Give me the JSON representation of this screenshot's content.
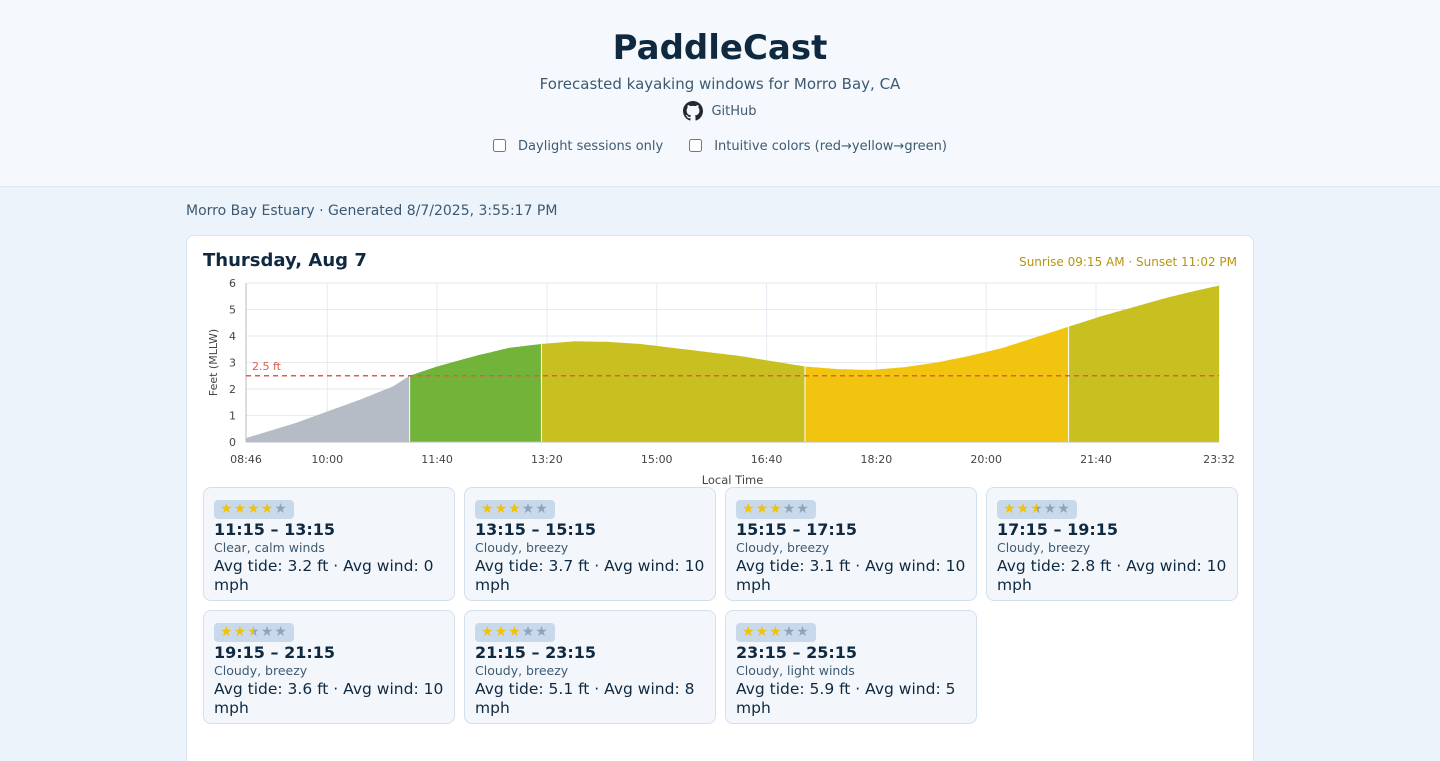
{
  "app": {
    "title": "PaddleCast",
    "subtitle": "Forecasted kayaking windows for Morro Bay, CA",
    "github_label": "GitHub",
    "toggles": [
      {
        "label": "Daylight sessions only",
        "checked": false
      },
      {
        "label": "Intuitive colors (red→yellow→green)",
        "checked": false
      }
    ]
  },
  "meta": "Morro Bay Estuary · Generated 8/7/2025, 3:55:17 PM",
  "day": {
    "title": "Thursday, Aug 7",
    "sun": "Sunrise 09:15 AM · Sunset 11:02 PM"
  },
  "chart_data": {
    "type": "area",
    "xlabel": "Local Time",
    "ylabel": "Feet (MLLW)",
    "ylim": [
      0,
      6
    ],
    "yticks": [
      "0",
      "1",
      "2",
      "3",
      "4",
      "5",
      "6"
    ],
    "xticks": [
      "08:46",
      "10:00",
      "11:40",
      "13:20",
      "15:00",
      "16:40",
      "18:20",
      "20:00",
      "21:40",
      "23:32"
    ],
    "x_minutes_range": [
      "08:46",
      "23:32"
    ],
    "threshold": {
      "value": 2.5,
      "label": "2.5 ft",
      "color": "#e25b4a"
    },
    "grid": true,
    "tide_curve": [
      {
        "t": "08:46",
        "ft": 0.15
      },
      {
        "t": "09:30",
        "ft": 0.7
      },
      {
        "t": "10:00",
        "ft": 1.15
      },
      {
        "t": "10:30",
        "ft": 1.6
      },
      {
        "t": "11:00",
        "ft": 2.1
      },
      {
        "t": "11:15",
        "ft": 2.5
      },
      {
        "t": "11:40",
        "ft": 2.85
      },
      {
        "t": "12:15",
        "ft": 3.25
      },
      {
        "t": "12:45",
        "ft": 3.55
      },
      {
        "t": "13:15",
        "ft": 3.7
      },
      {
        "t": "13:45",
        "ft": 3.8
      },
      {
        "t": "14:15",
        "ft": 3.78
      },
      {
        "t": "14:45",
        "ft": 3.7
      },
      {
        "t": "15:15",
        "ft": 3.55
      },
      {
        "t": "15:45",
        "ft": 3.4
      },
      {
        "t": "16:15",
        "ft": 3.25
      },
      {
        "t": "16:45",
        "ft": 3.05
      },
      {
        "t": "17:15",
        "ft": 2.85
      },
      {
        "t": "17:45",
        "ft": 2.75
      },
      {
        "t": "18:15",
        "ft": 2.72
      },
      {
        "t": "18:45",
        "ft": 2.82
      },
      {
        "t": "19:15",
        "ft": 3.0
      },
      {
        "t": "19:45",
        "ft": 3.25
      },
      {
        "t": "20:15",
        "ft": 3.55
      },
      {
        "t": "20:45",
        "ft": 3.95
      },
      {
        "t": "21:15",
        "ft": 4.35
      },
      {
        "t": "21:45",
        "ft": 4.75
      },
      {
        "t": "22:15",
        "ft": 5.1
      },
      {
        "t": "22:45",
        "ft": 5.45
      },
      {
        "t": "23:15",
        "ft": 5.75
      },
      {
        "t": "23:32",
        "ft": 5.9
      }
    ],
    "bands": [
      {
        "start": "08:46",
        "end": "11:15",
        "color": "#b5bcc6"
      },
      {
        "start": "11:15",
        "end": "13:15",
        "color": "#72b33a"
      },
      {
        "start": "13:15",
        "end": "17:15",
        "color": "#c8c020"
      },
      {
        "start": "17:15",
        "end": "21:15",
        "color": "#f0c40f"
      },
      {
        "start": "21:15",
        "end": "23:32",
        "color": "#c8c020"
      }
    ]
  },
  "sessions": [
    {
      "time": "11:15 – 13:15",
      "cond": "Clear, calm winds",
      "avg": "Avg tide: 3.2 ft · Avg wind: 0 mph",
      "rating": 4
    },
    {
      "time": "13:15 – 15:15",
      "cond": "Cloudy, breezy",
      "avg": "Avg tide: 3.7 ft · Avg wind: 10 mph",
      "rating": 3
    },
    {
      "time": "15:15 – 17:15",
      "cond": "Cloudy, breezy",
      "avg": "Avg tide: 3.1 ft · Avg wind: 10 mph",
      "rating": 3
    },
    {
      "time": "17:15 – 19:15",
      "cond": "Cloudy, breezy",
      "avg": "Avg tide: 2.8 ft · Avg wind: 10 mph",
      "rating": 2.5
    },
    {
      "time": "19:15 – 21:15",
      "cond": "Cloudy, breezy",
      "avg": "Avg tide: 3.6 ft · Avg wind: 10 mph",
      "rating": 2.5
    },
    {
      "time": "21:15 – 23:15",
      "cond": "Cloudy, breezy",
      "avg": "Avg tide: 5.1 ft · Avg wind: 8 mph",
      "rating": 3
    },
    {
      "time": "23:15 – 25:15",
      "cond": "Cloudy, light winds",
      "avg": "Avg tide: 5.9 ft · Avg wind: 5 mph",
      "rating": 3
    }
  ],
  "icons": {
    "github": "github-icon",
    "star": "star-icon"
  }
}
